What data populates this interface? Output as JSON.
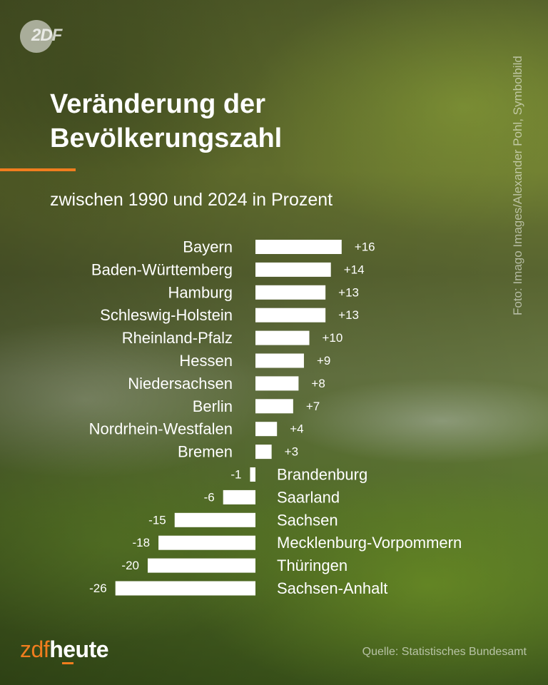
{
  "brand_logo_top": {
    "text": "2DF"
  },
  "title": {
    "line1": "Veränderung der",
    "line2": "Bevölkerungszahl"
  },
  "subtitle": "zwischen 1990 und 2024 in Prozent",
  "credit": "Foto: Imago Images/Alexander Pohl, Symbolbild",
  "source": "Quelle: Statistisches Bundesamt",
  "brand_footer": {
    "part1": "zdf",
    "part2": "heute"
  },
  "colors": {
    "bar": "#ffffff",
    "accent": "#f07d1e",
    "text": "#ffffff"
  },
  "chart_data": {
    "type": "bar",
    "orientation": "horizontal",
    "title": "Veränderung der Bevölkerungszahl",
    "subtitle": "zwischen 1990 und 2024 in Prozent",
    "categories": [
      "Bayern",
      "Baden-Württemberg",
      "Hamburg",
      "Schleswig-Holstein",
      "Rheinland-Pfalz",
      "Hessen",
      "Niedersachsen",
      "Berlin",
      "Nordrhein-Westfalen",
      "Bremen",
      "Brandenburg",
      "Saarland",
      "Sachsen",
      "Mecklenburg-Vorpommern",
      "Thüringen",
      "Sachsen-Anhalt"
    ],
    "values": [
      16,
      14,
      13,
      13,
      10,
      9,
      8,
      7,
      4,
      3,
      -1,
      -6,
      -15,
      -18,
      -20,
      -26
    ],
    "value_labels": [
      "+16",
      "+14",
      "+13",
      "+13",
      "+10",
      "+9",
      "+8",
      "+7",
      "+4",
      "+3",
      "-1",
      "-6",
      "-15",
      "-18",
      "-20",
      "-26"
    ],
    "xlabel": "",
    "ylabel": "",
    "grid": false,
    "legend": "none"
  }
}
